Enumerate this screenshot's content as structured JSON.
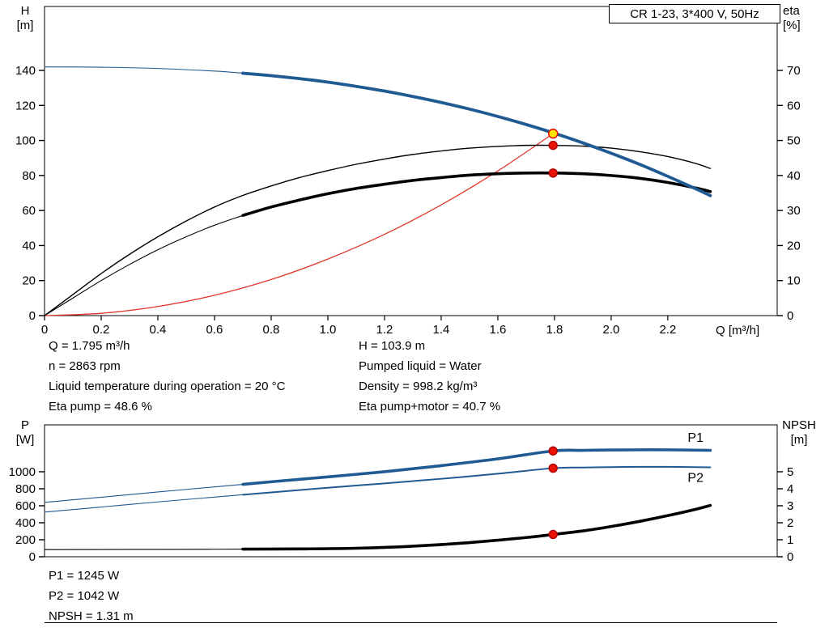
{
  "title_box": {
    "label": "CR 1-23, 3*400 V, 50Hz"
  },
  "info_top": {
    "left": [
      "Q = 1.795 m³/h",
      "n = 2863 rpm",
      "Liquid temperature during operation = 20 °C",
      "Eta pump = 48.6 %"
    ],
    "right": [
      "H = 103.9 m",
      "Pumped liquid = Water",
      "Density = 998.2 kg/m³",
      "Eta pump+motor = 40.7 %"
    ]
  },
  "info_bottom": [
    "P1 = 1245 W",
    "P2 = 1042 W",
    "NPSH = 1.31 m"
  ],
  "colors": {
    "curve_blue": "#1f5a92",
    "curve_black": "#000000",
    "curve_red": "#e1372b",
    "marker_red": "#ea1406",
    "marker_yellow": "#ffe000",
    "axis": "#000000"
  },
  "chart_data": [
    {
      "type": "line",
      "name": "qh-eta-chart",
      "x_axis": {
        "title": "Q [m³/h]",
        "min": 0,
        "max": 2.586,
        "tick_values": [
          0,
          0.2,
          0.4,
          0.6,
          0.8,
          1.0,
          1.2,
          1.4,
          1.6,
          1.8,
          2.0,
          2.2
        ],
        "tick_labels": [
          "0",
          "0.2",
          "0.4",
          "0.6",
          "0.8",
          "1.0",
          "1.2",
          "1.4",
          "1.6",
          "1.8",
          "2.0",
          "2.2"
        ]
      },
      "y_left": {
        "title": [
          "H",
          "[m]"
        ],
        "min": 0,
        "max": 176.5,
        "tick_values": [
          0,
          20,
          40,
          60,
          80,
          100,
          120,
          140
        ],
        "tick_labels": [
          "0",
          "20",
          "40",
          "60",
          "80",
          "100",
          "120",
          "140"
        ]
      },
      "y_right": {
        "title": [
          "eta",
          "[%]"
        ],
        "min": 0,
        "max": 88.25,
        "tick_values": [
          0,
          10,
          20,
          30,
          40,
          50,
          60,
          70
        ],
        "tick_labels": [
          "0",
          "10",
          "20",
          "30",
          "40",
          "50",
          "60",
          "70"
        ]
      },
      "series": [
        {
          "name": "duty-flow-curve",
          "axis": "left",
          "color": "#e1372b",
          "width_thin": 1.3,
          "points": [
            [
              0,
              0
            ],
            [
              0.2,
              1.3
            ],
            [
              0.4,
              5.2
            ],
            [
              0.6,
              11.6
            ],
            [
              0.8,
              20.6
            ],
            [
              1.0,
              32.3
            ],
            [
              1.2,
              46.4
            ],
            [
              1.4,
              63.2
            ],
            [
              1.6,
              82.6
            ],
            [
              1.795,
              103.9
            ]
          ]
        },
        {
          "name": "eta-pump-curve",
          "axis": "right",
          "color": "#000000",
          "width_thin": 1.4,
          "points": [
            [
              0,
              0
            ],
            [
              0.1,
              6
            ],
            [
              0.2,
              12
            ],
            [
              0.3,
              17.5
            ],
            [
              0.4,
              22.5
            ],
            [
              0.5,
              27
            ],
            [
              0.6,
              31
            ],
            [
              0.7,
              34.3
            ],
            [
              0.8,
              37
            ],
            [
              0.9,
              39.4
            ],
            [
              1.0,
              41.4
            ],
            [
              1.1,
              43.2
            ],
            [
              1.2,
              44.7
            ],
            [
              1.3,
              46
            ],
            [
              1.4,
              47
            ],
            [
              1.5,
              47.8
            ],
            [
              1.6,
              48.3
            ],
            [
              1.7,
              48.6
            ],
            [
              1.8,
              48.6
            ],
            [
              1.9,
              48.4
            ],
            [
              2.0,
              47.8
            ],
            [
              2.1,
              46.8
            ],
            [
              2.2,
              45.4
            ],
            [
              2.3,
              43.4
            ],
            [
              2.35,
              42
            ]
          ]
        },
        {
          "name": "eta-pump-motor-curve",
          "axis": "right",
          "color": "#000000",
          "width_thin": 1.1,
          "width_thick": 3.6,
          "thick_from": 0.7,
          "points": [
            [
              0,
              0
            ],
            [
              0.1,
              5
            ],
            [
              0.2,
              10
            ],
            [
              0.3,
              14.6
            ],
            [
              0.4,
              18.8
            ],
            [
              0.5,
              22.5
            ],
            [
              0.6,
              25.8
            ],
            [
              0.7,
              28.6
            ],
            [
              0.8,
              31
            ],
            [
              0.9,
              33
            ],
            [
              1.0,
              34.8
            ],
            [
              1.1,
              36.3
            ],
            [
              1.2,
              37.5
            ],
            [
              1.3,
              38.6
            ],
            [
              1.4,
              39.4
            ],
            [
              1.5,
              40.1
            ],
            [
              1.6,
              40.5
            ],
            [
              1.7,
              40.7
            ],
            [
              1.8,
              40.7
            ],
            [
              1.9,
              40.5
            ],
            [
              2.0,
              40
            ],
            [
              2.1,
              39.2
            ],
            [
              2.2,
              38
            ],
            [
              2.3,
              36.4
            ],
            [
              2.35,
              35.4
            ]
          ]
        },
        {
          "name": "head-curve",
          "axis": "left",
          "color": "#1f5a92",
          "width_thin": 1.1,
          "width_thick": 3.8,
          "thick_from": 0.7,
          "points": [
            [
              0,
              142
            ],
            [
              0.2,
              141.8
            ],
            [
              0.4,
              141.1
            ],
            [
              0.6,
              139.6
            ],
            [
              0.7,
              138.4
            ],
            [
              0.8,
              137.0
            ],
            [
              0.9,
              135.3
            ],
            [
              1.0,
              133.3
            ],
            [
              1.1,
              130.9
            ],
            [
              1.2,
              128.2
            ],
            [
              1.3,
              125.1
            ],
            [
              1.4,
              121.7
            ],
            [
              1.5,
              117.9
            ],
            [
              1.6,
              113.7
            ],
            [
              1.7,
              109.1
            ],
            [
              1.8,
              104.1
            ],
            [
              1.9,
              98.6
            ],
            [
              2.0,
              92.7
            ],
            [
              2.1,
              86.4
            ],
            [
              2.2,
              79.5
            ],
            [
              2.3,
              72.3
            ],
            [
              2.35,
              68.5
            ]
          ]
        }
      ],
      "markers": [
        {
          "name": "duty-point",
          "axis": "left",
          "q": 1.795,
          "v": 103.9,
          "r": 5.5,
          "fill": "#ffe000",
          "stroke": "#e00000"
        },
        {
          "name": "eta-pump-point",
          "axis": "right",
          "q": 1.795,
          "v": 48.6,
          "r": 5,
          "fill": "#ea1406",
          "stroke": "#b00000"
        },
        {
          "name": "eta-pump-motor-point",
          "axis": "right",
          "q": 1.795,
          "v": 40.7,
          "r": 5,
          "fill": "#ea1406",
          "stroke": "#b00000"
        }
      ]
    },
    {
      "type": "line",
      "name": "power-npsh-chart",
      "x_axis": {
        "title": "",
        "min": 0,
        "max": 2.586,
        "tick_values": [],
        "tick_labels": []
      },
      "y_left": {
        "title": [
          "P",
          "[W]"
        ],
        "min": 0,
        "max": 1552,
        "tick_values": [
          0,
          200,
          400,
          600,
          800,
          1000
        ],
        "tick_labels": [
          "0",
          "200",
          "400",
          "600",
          "800",
          "1000"
        ]
      },
      "y_right": {
        "title": [
          "NPSH",
          "[m]"
        ],
        "min": 0,
        "max": 7.76,
        "tick_values": [
          0,
          1,
          2,
          3,
          4,
          5
        ],
        "tick_labels": [
          "0",
          "1",
          "2",
          "3",
          "4",
          "5"
        ]
      },
      "series": [
        {
          "name": "npsh-curve",
          "axis": "right",
          "color": "#000000",
          "width_thin": 1.1,
          "width_thick": 3.6,
          "thick_from": 0.7,
          "points": [
            [
              0,
              0.42
            ],
            [
              0.3,
              0.43
            ],
            [
              0.6,
              0.44
            ],
            [
              0.7,
              0.45
            ],
            [
              0.9,
              0.46
            ],
            [
              1.1,
              0.5
            ],
            [
              1.3,
              0.62
            ],
            [
              1.5,
              0.83
            ],
            [
              1.7,
              1.13
            ],
            [
              1.795,
              1.31
            ],
            [
              1.9,
              1.52
            ],
            [
              2.0,
              1.78
            ],
            [
              2.1,
              2.08
            ],
            [
              2.2,
              2.42
            ],
            [
              2.3,
              2.8
            ],
            [
              2.35,
              3.02
            ]
          ]
        },
        {
          "name": "p2-curve",
          "axis": "left",
          "color": "#1f5a92",
          "width_thin": 1.1,
          "width_thick": 2.0,
          "thick_from": 0.7,
          "points": [
            [
              0,
              525
            ],
            [
              0.2,
              585
            ],
            [
              0.4,
              645
            ],
            [
              0.6,
              702
            ],
            [
              0.7,
              730
            ],
            [
              0.8,
              757
            ],
            [
              1.0,
              812
            ],
            [
              1.2,
              863
            ],
            [
              1.4,
              917
            ],
            [
              1.6,
              977
            ],
            [
              1.795,
              1042
            ],
            [
              1.9,
              1050
            ],
            [
              2.0,
              1055
            ],
            [
              2.1,
              1058
            ],
            [
              2.2,
              1058
            ],
            [
              2.35,
              1052
            ]
          ]
        },
        {
          "name": "p1-curve",
          "axis": "left",
          "color": "#1f5a92",
          "width_thin": 1.1,
          "width_thick": 3.6,
          "thick_from": 0.7,
          "points": [
            [
              0,
              640
            ],
            [
              0.2,
              700
            ],
            [
              0.4,
              762
            ],
            [
              0.6,
              822
            ],
            [
              0.7,
              852
            ],
            [
              0.8,
              882
            ],
            [
              1.0,
              940
            ],
            [
              1.2,
              1000
            ],
            [
              1.4,
              1072
            ],
            [
              1.6,
              1152
            ],
            [
              1.795,
              1245
            ],
            [
              1.9,
              1252
            ],
            [
              2.0,
              1256
            ],
            [
              2.1,
              1258
            ],
            [
              2.2,
              1258
            ],
            [
              2.35,
              1252
            ]
          ]
        }
      ],
      "annotations": [
        {
          "text": "P1",
          "axis": "left",
          "q": 2.27,
          "v": 1350,
          "color": "#1f5a92"
        },
        {
          "text": "P2",
          "axis": "left",
          "q": 2.27,
          "v": 880,
          "color": "#1f5a92"
        }
      ],
      "markers": [
        {
          "name": "p1-point",
          "axis": "left",
          "q": 1.795,
          "v": 1245,
          "r": 5,
          "fill": "#ea1406",
          "stroke": "#b00000"
        },
        {
          "name": "p2-point",
          "axis": "left",
          "q": 1.795,
          "v": 1042,
          "r": 5,
          "fill": "#ea1406",
          "stroke": "#b00000"
        },
        {
          "name": "npsh-point",
          "axis": "right",
          "q": 1.795,
          "v": 1.31,
          "r": 5,
          "fill": "#ea1406",
          "stroke": "#b00000"
        }
      ]
    }
  ]
}
